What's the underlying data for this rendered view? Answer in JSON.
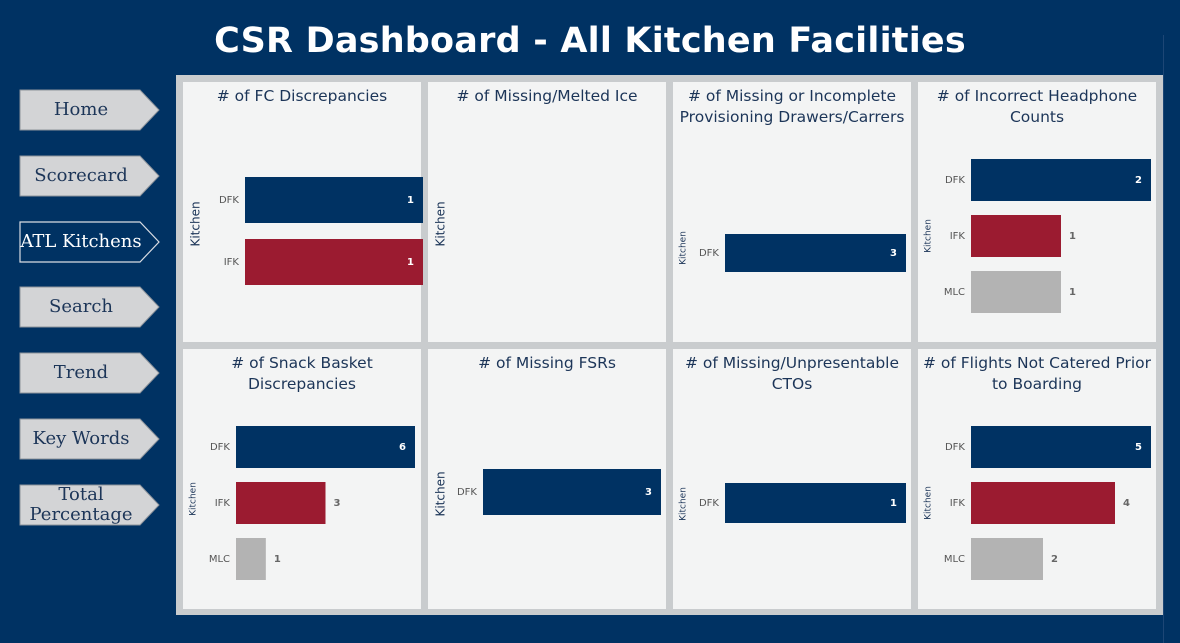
{
  "page": {
    "title": "CSR Dashboard - All Kitchen Facilities"
  },
  "nav": {
    "items": [
      {
        "name": "nav-home-button",
        "label": "Home",
        "active": false
      },
      {
        "name": "nav-scorecard-button",
        "label": "Scorecard",
        "active": false
      },
      {
        "name": "nav-atl-kitchens-button",
        "label": "ATL Kitchens",
        "active": true
      },
      {
        "name": "nav-search-button",
        "label": "Search",
        "active": false
      },
      {
        "name": "nav-trend-button",
        "label": "Trend",
        "active": false
      },
      {
        "name": "nav-key-words-button",
        "label": "Key Words",
        "active": false
      },
      {
        "name": "nav-total-percentage-button",
        "label": "Total Percentage",
        "active": false
      }
    ]
  },
  "colors": {
    "DFK": "#003263",
    "IFK": "#9b1b30",
    "MLC": "#b3b3b3",
    "label_inside": "#ffffff",
    "label_outside": "#666666",
    "nav_button": "#d3d4d6",
    "nav_active": "#003263"
  },
  "chart_data": [
    {
      "type": "bar",
      "orientation": "horizontal",
      "title": "# of FC Discrepancies",
      "ylabel": "Kitchen",
      "categories": [
        "DFK",
        "IFK"
      ],
      "values": [
        1,
        1
      ],
      "xlim": [
        0,
        1
      ]
    },
    {
      "type": "bar",
      "orientation": "horizontal",
      "title": "# of Missing/Melted Ice",
      "ylabel": "Kitchen",
      "categories": [],
      "values": [],
      "xlim": [
        0,
        1
      ]
    },
    {
      "type": "bar",
      "orientation": "horizontal",
      "title": "# of Missing or Incomplete Provisioning Drawers/Carrers",
      "ylabel": "Kitchen",
      "categories": [
        "DFK"
      ],
      "values": [
        3
      ],
      "xlim": [
        0,
        3
      ]
    },
    {
      "type": "bar",
      "orientation": "horizontal",
      "title": "# of Incorrect Headphone Counts",
      "ylabel": "Kitchen",
      "categories": [
        "DFK",
        "IFK",
        "MLC"
      ],
      "values": [
        2,
        1,
        1
      ],
      "xlim": [
        0,
        2
      ]
    },
    {
      "type": "bar",
      "orientation": "horizontal",
      "title": "# of Snack Basket Discrepancies",
      "ylabel": "Kitchen",
      "categories": [
        "DFK",
        "IFK",
        "MLC"
      ],
      "values": [
        6,
        3,
        1
      ],
      "xlim": [
        0,
        6
      ]
    },
    {
      "type": "bar",
      "orientation": "horizontal",
      "title": "# of Missing FSRs",
      "ylabel": "Kitchen",
      "categories": [
        "DFK"
      ],
      "values": [
        3
      ],
      "xlim": [
        0,
        3
      ]
    },
    {
      "type": "bar",
      "orientation": "horizontal",
      "title": "# of Missing/Unpresentable CTOs",
      "ylabel": "Kitchen",
      "categories": [
        "DFK"
      ],
      "values": [
        1
      ],
      "xlim": [
        0,
        1
      ]
    },
    {
      "type": "bar",
      "orientation": "horizontal",
      "title": "# of Flights Not Catered Prior to Boarding",
      "ylabel": "Kitchen",
      "categories": [
        "DFK",
        "IFK",
        "MLC"
      ],
      "values": [
        5,
        4,
        2
      ],
      "xlim": [
        0,
        5
      ]
    }
  ]
}
